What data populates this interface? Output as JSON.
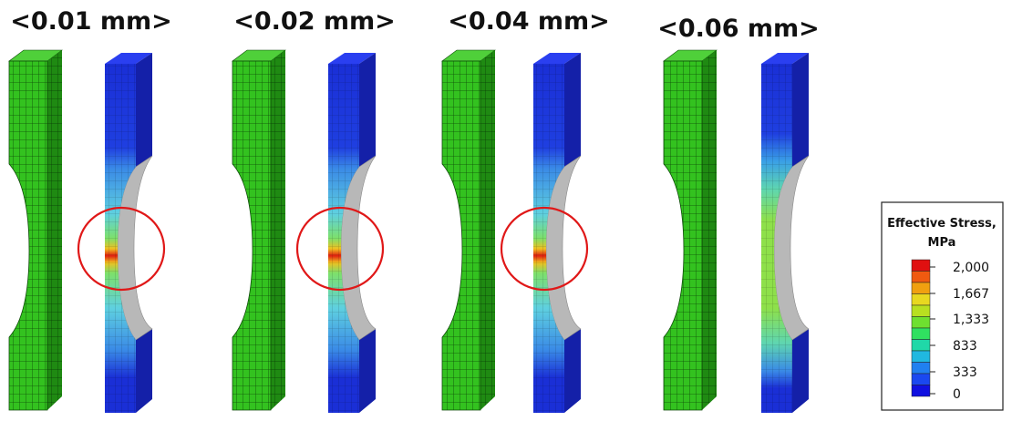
{
  "panels": [
    {
      "title": "<0.01 mm>"
    },
    {
      "title": "<0.02 mm>"
    },
    {
      "title": "<0.04 mm>"
    },
    {
      "title": "<0.06 mm>"
    }
  ],
  "legend": {
    "title_lines": [
      "Effective Stress,",
      "MPa"
    ],
    "labels": [
      "2,000",
      "1,667",
      "1,333",
      "833",
      "333",
      "0"
    ]
  }
}
